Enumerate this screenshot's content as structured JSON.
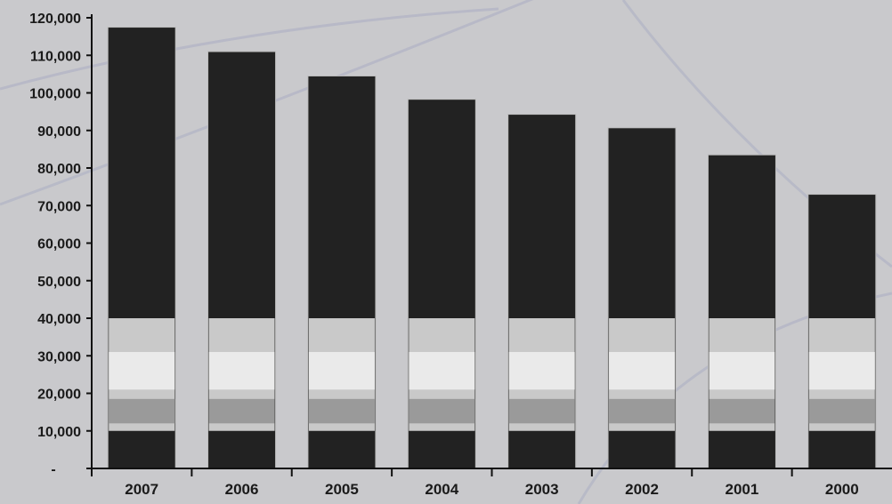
{
  "colors": {
    "background": "#c9c9cc",
    "bar": "#222222",
    "axis": "#111111",
    "text": "#1a1a1a"
  },
  "chart_data": {
    "type": "bar",
    "categories": [
      "2007",
      "2006",
      "2005",
      "2004",
      "2003",
      "2002",
      "2001",
      "2000"
    ],
    "values": [
      117500,
      111000,
      104500,
      98300,
      94300,
      90700,
      83500,
      73000
    ],
    "yticks": [
      0,
      10000,
      20000,
      30000,
      40000,
      50000,
      60000,
      70000,
      80000,
      90000,
      100000,
      110000,
      120000
    ],
    "ytick_labels": [
      "-",
      "10,000",
      "20,000",
      "30,000",
      "40,000",
      "50,000",
      "60,000",
      "70,000",
      "80,000",
      "90,000",
      "100,000",
      "110,000",
      "120,000"
    ],
    "ylim": [
      0,
      120000
    ],
    "title": "",
    "xlabel": "",
    "ylabel": "",
    "grid": false,
    "legend": "none"
  }
}
